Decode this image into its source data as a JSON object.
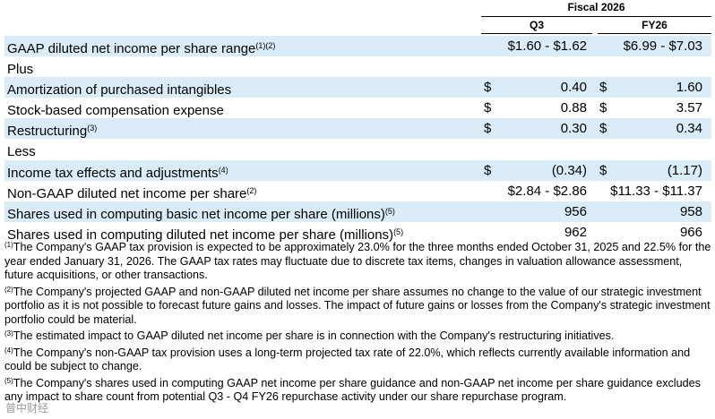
{
  "header": {
    "fiscal_label": "Fiscal 2026",
    "col_q3": "Q3",
    "col_fy26": "FY26"
  },
  "rows": [
    {
      "label": "GAAP diluted net income per share range",
      "note": "(1)(2)",
      "q3_dollar": "",
      "q3": "$1.60 - $1.62",
      "fy_dollar": "",
      "fy": "$6.99 - $7.03",
      "shaded": true
    },
    {
      "label": "Plus",
      "note": "",
      "q3_dollar": "",
      "q3": "",
      "fy_dollar": "",
      "fy": "",
      "shaded": false
    },
    {
      "label": "Amortization of purchased intangibles",
      "note": "",
      "q3_dollar": "$",
      "q3": "0.40",
      "fy_dollar": "$",
      "fy": "1.60",
      "shaded": true
    },
    {
      "label": "Stock-based compensation expense",
      "note": "",
      "q3_dollar": "$",
      "q3": "0.88",
      "fy_dollar": "$",
      "fy": "3.57",
      "shaded": false
    },
    {
      "label": "Restructuring",
      "note": "(3)",
      "q3_dollar": "$",
      "q3": "0.30",
      "fy_dollar": "$",
      "fy": "0.34",
      "shaded": true
    },
    {
      "label": "Less",
      "note": "",
      "q3_dollar": "",
      "q3": "",
      "fy_dollar": "",
      "fy": "",
      "shaded": false
    },
    {
      "label": "Income tax effects and adjustments",
      "note": "(4)",
      "q3_dollar": "$",
      "q3": "(0.34)",
      "fy_dollar": "$",
      "fy": "(1.17)",
      "shaded": true
    },
    {
      "label": "Non-GAAP diluted net income per share",
      "note": "(2)",
      "q3_dollar": "",
      "q3": "$2.84 - $2.86",
      "fy_dollar": "",
      "fy": "$11.33 - $11.37",
      "shaded": false
    },
    {
      "label": "Shares used in computing basic net income per share (millions)",
      "note": "(5)",
      "q3_dollar": "",
      "q3": "956",
      "fy_dollar": "",
      "fy": "958",
      "shaded": true
    },
    {
      "label": "Shares used in computing diluted net income per share (millions)",
      "note": "(5)",
      "q3_dollar": "",
      "q3": "962",
      "fy_dollar": "",
      "fy": "966",
      "shaded": false
    }
  ],
  "footnotes": [
    {
      "mark": "(1)",
      "text": "The Company's GAAP tax provision is expected to be approximately 23.0% for the three months ended October 31, 2025 and 22.5% for the year ended January 31, 2026. The GAAP tax rates may fluctuate due to discrete tax items, changes in valuation allowance assessment, future acquisitions, or other transactions."
    },
    {
      "mark": "(2)",
      "text": "The Company's projected GAAP and non-GAAP diluted net income per share assumes no change to the value of our strategic investment portfolio as it is not possible to forecast future gains and losses. The impact of future gains or losses from the Company's strategic investment portfolio could be material."
    },
    {
      "mark": "(3)",
      "text": "The estimated impact to GAAP diluted net income per share is in connection with the Company's restructuring initiatives."
    },
    {
      "mark": "(4)",
      "text": "The Company's non-GAAP tax provision uses a long-term projected tax rate of 22.0%, which reflects currently available information and could be subject to change."
    },
    {
      "mark": "(5)",
      "text": "The Company's shares used in computing GAAP net income per share guidance and non-GAAP net income per share guidance excludes any impact to share count from potential Q3 - Q4 FY26 repurchase activity under our share repurchase program."
    }
  ],
  "watermark": "普中财经"
}
